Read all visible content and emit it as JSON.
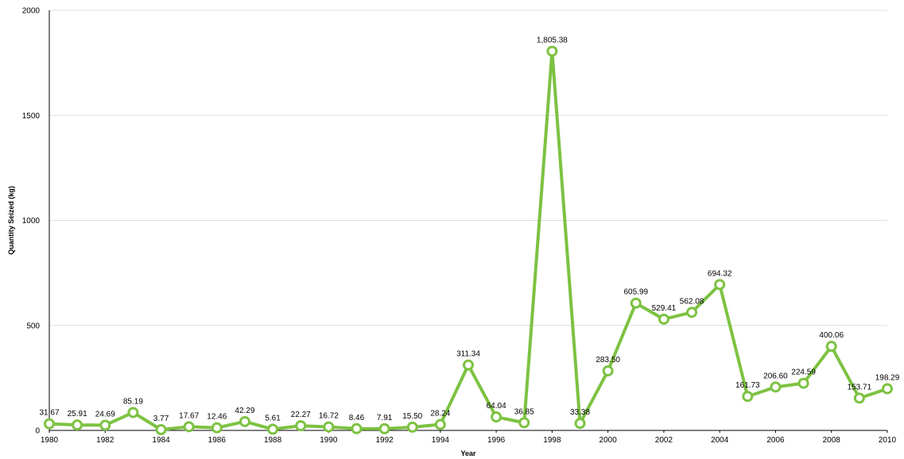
{
  "chart_data": {
    "type": "line",
    "title": "",
    "xlabel": "Year",
    "ylabel": "Quantity Seized (kg)",
    "ylim": [
      0,
      2000
    ],
    "yticks": [
      "0",
      "500",
      "1000",
      "1500",
      "2000"
    ],
    "xticks": [
      "1980",
      "1982",
      "1984",
      "1986",
      "1988",
      "1990",
      "1992",
      "1994",
      "1996",
      "1998",
      "2000",
      "2002",
      "2004",
      "2006",
      "2008",
      "2010"
    ],
    "grid": "horizontal",
    "legend": "none",
    "colors": {
      "line": "#7dc242",
      "point_fill": "#ffffff",
      "grid": "#dddddd",
      "axis": "#000000"
    },
    "x": [
      1980,
      1981,
      1982,
      1983,
      1984,
      1985,
      1986,
      1987,
      1988,
      1989,
      1990,
      1991,
      1992,
      1993,
      1994,
      1995,
      1996,
      1997,
      1998,
      1999,
      2000,
      2001,
      2002,
      2003,
      2004,
      2005,
      2006,
      2007,
      2008,
      2009,
      2010
    ],
    "values": [
      31.67,
      25.91,
      24.69,
      85.19,
      3.77,
      17.67,
      12.46,
      42.29,
      5.61,
      22.27,
      16.72,
      8.46,
      7.91,
      15.5,
      28.24,
      311.34,
      64.04,
      36.85,
      1805.38,
      33.38,
      283.5,
      605.99,
      529.41,
      562.08,
      694.32,
      161.73,
      206.6,
      224.59,
      400.06,
      153.71,
      198.29
    ],
    "data_labels": [
      "31.67",
      "25.91",
      "24.69",
      "85.19",
      "3.77",
      "17.67",
      "12.46",
      "42.29",
      "5.61",
      "22.27",
      "16.72",
      "8.46",
      "7.91",
      "15.50",
      "28.24",
      "311.34",
      "64.04",
      "36.85",
      "1,805.38",
      "33.38",
      "283.50",
      "605.99",
      "529.41",
      "562.08",
      "694.32",
      "161.73",
      "206.60",
      "224.59",
      "400.06",
      "153.71",
      "198.29"
    ]
  }
}
